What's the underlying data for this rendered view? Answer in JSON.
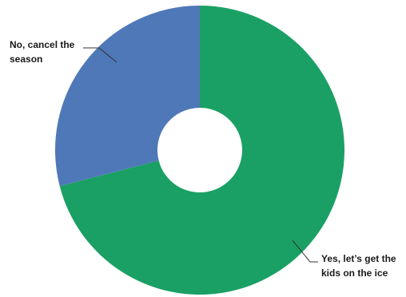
{
  "chart_data": {
    "type": "pie",
    "donut": true,
    "categories": [
      "Yes, let's get the kids on the ice",
      "No, cancel the season"
    ],
    "label_lines": [
      [
        "Yes, let’s get the",
        "kids on the ice"
      ],
      [
        "No, cancel the",
        "season"
      ]
    ],
    "values": [
      71,
      29
    ],
    "colors": [
      "#1aa064",
      "#4f78b8"
    ],
    "legend": "none"
  }
}
